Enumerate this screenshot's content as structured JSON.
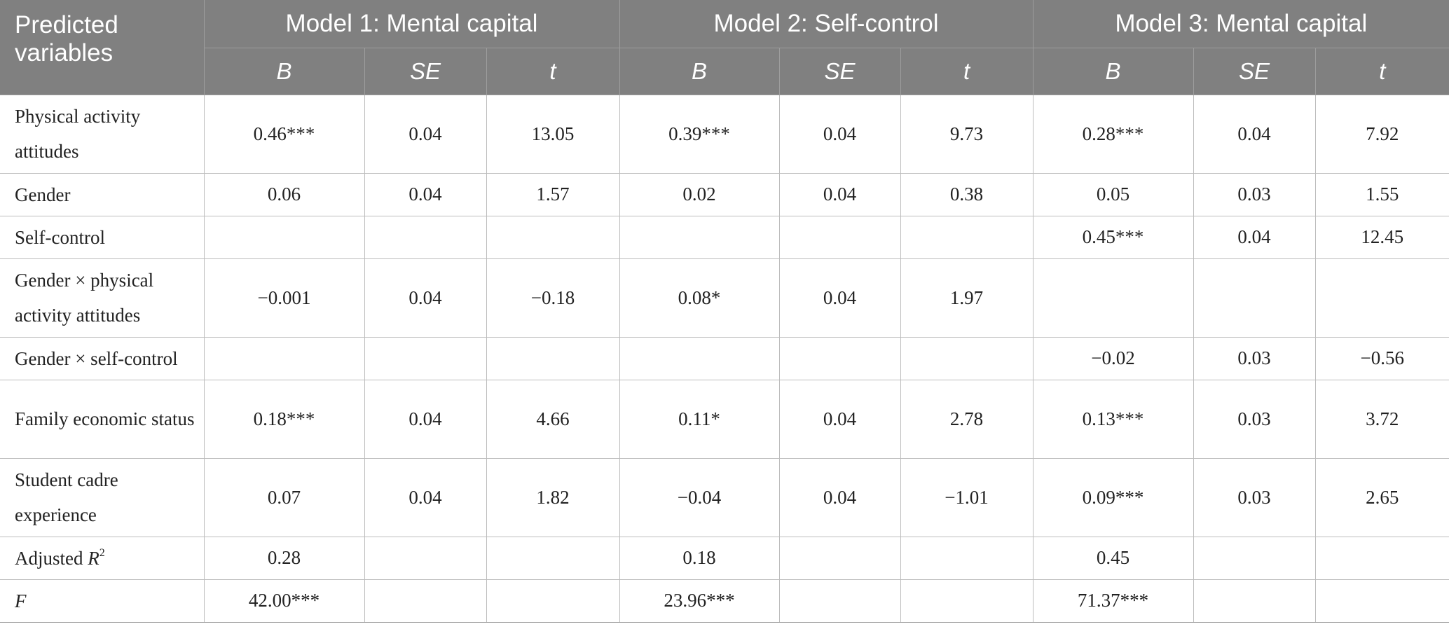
{
  "header": {
    "stub": "Predicted variables",
    "groups": [
      "Model 1: Mental capital",
      "Model 2: Self-control",
      "Model 3: Mental capital"
    ],
    "subheaders": [
      "B",
      "SE",
      "t",
      "B",
      "SE",
      "t",
      "B",
      "SE",
      "t"
    ]
  },
  "rows": [
    {
      "label": "Physical activity attitudes",
      "cells": [
        "0.46***",
        "0.04",
        "13.05",
        "0.39***",
        "0.04",
        "9.73",
        "0.28***",
        "0.04",
        "7.92"
      ]
    },
    {
      "label": "Gender",
      "cells": [
        "0.06",
        "0.04",
        "1.57",
        "0.02",
        "0.04",
        "0.38",
        "0.05",
        "0.03",
        "1.55"
      ]
    },
    {
      "label": "Self-control",
      "cells": [
        "",
        "",
        "",
        "",
        "",
        "",
        "0.45***",
        "0.04",
        "12.45"
      ]
    },
    {
      "label": "Gender × physical activity attitudes",
      "cells": [
        "−0.001",
        "0.04",
        "−0.18",
        "0.08*",
        "0.04",
        "1.97",
        "",
        "",
        ""
      ]
    },
    {
      "label": "Gender × self-control",
      "cells": [
        "",
        "",
        "",
        "",
        "",
        "",
        "−0.02",
        "0.03",
        "−0.56"
      ]
    },
    {
      "label": "Family economic status",
      "cells": [
        "0.18***",
        "0.04",
        "4.66",
        "0.11*",
        "0.04",
        "2.78",
        "0.13***",
        "0.03",
        "3.72"
      ]
    },
    {
      "label": "Student cadre experience",
      "cells": [
        "0.07",
        "0.04",
        "1.82",
        "−0.04",
        "0.04",
        "−1.01",
        "0.09***",
        "0.03",
        "2.65"
      ]
    },
    {
      "label_prefix": "Adjusted ",
      "label_var": "R",
      "label_sup": "2",
      "cells": [
        "0.28",
        "",
        "",
        "0.18",
        "",
        "",
        "0.45",
        "",
        ""
      ]
    },
    {
      "label_var": "F",
      "cells": [
        "42.00***",
        "",
        "",
        "23.96***",
        "",
        "",
        "71.37***",
        "",
        ""
      ]
    }
  ],
  "colors": {
    "header_bg": "#808080",
    "header_text": "#ffffff",
    "grid": "#bdbdbd",
    "body_text": "#222222"
  }
}
